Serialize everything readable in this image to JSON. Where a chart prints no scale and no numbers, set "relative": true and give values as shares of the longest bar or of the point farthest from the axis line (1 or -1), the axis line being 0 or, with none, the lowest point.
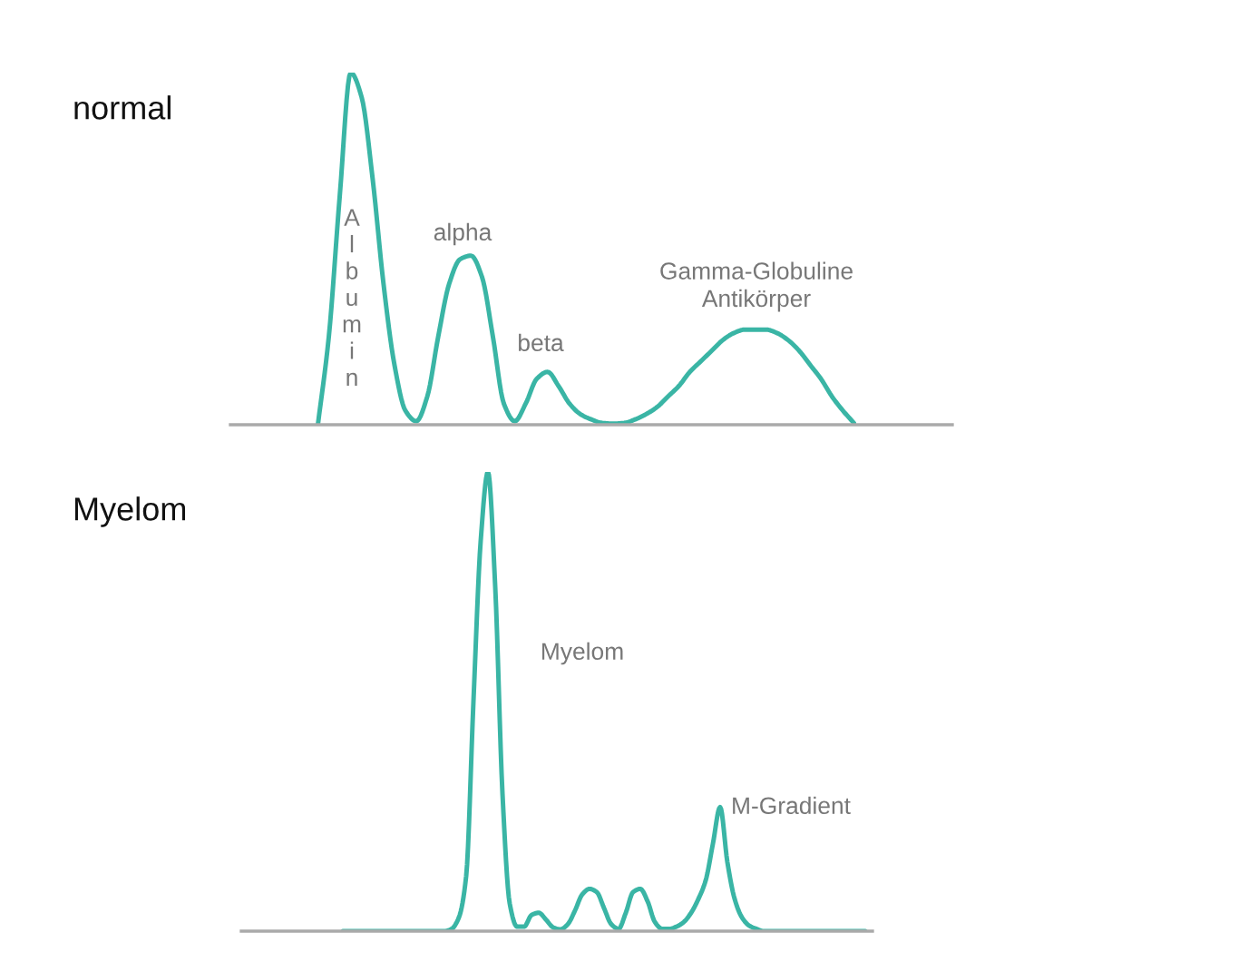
{
  "chart_data": [
    {
      "type": "line",
      "title": "normal",
      "relative": true,
      "categories": [
        null,
        null,
        null,
        null,
        null,
        null,
        null,
        null,
        null,
        null,
        null,
        null,
        null,
        null,
        null,
        null,
        null,
        null,
        null,
        null,
        null,
        null,
        null,
        null,
        null,
        null,
        null,
        null,
        null,
        null,
        null,
        null,
        null,
        null,
        null,
        null,
        null,
        null,
        null,
        null,
        null,
        null,
        null,
        null,
        null,
        null,
        null,
        null,
        null,
        null,
        null,
        null,
        null,
        null,
        null,
        null,
        null,
        null,
        null,
        null,
        null,
        null,
        null,
        null,
        null,
        null,
        null
      ],
      "series": [
        {
          "color": "#3ab5a5",
          "values": [
            null,
            null,
            null,
            null,
            null,
            null,
            null,
            null,
            0,
            0.25,
            0.65,
            1,
            0.93,
            0.7,
            0.4,
            0.17,
            0.04,
            0.01,
            0.08,
            0.25,
            0.4,
            0.47,
            0.48,
            0.42,
            0.25,
            0.06,
            0.01,
            0.06,
            0.13,
            0.15,
            0.11,
            0.06,
            0.03,
            0.015,
            0.005,
            0.003,
            0.005,
            0.015,
            0.03,
            0.05,
            0.08,
            0.11,
            0.15,
            0.18,
            0.21,
            0.24,
            0.26,
            0.27,
            0.27,
            0.27,
            0.26,
            0.24,
            0.21,
            0.17,
            0.13,
            0.08,
            0.04,
            0.005,
            null,
            null,
            null,
            null,
            null,
            null,
            null,
            null,
            null
          ]
        }
      ],
      "annotations": [
        "Albumin",
        "alpha",
        "beta",
        "Gamma-Globuline\nAntikörper"
      ]
    },
    {
      "type": "line",
      "title": "Myelom",
      "relative": true,
      "categories": [
        null,
        null,
        null,
        null,
        null,
        null,
        null,
        null,
        null,
        null,
        null,
        null,
        null,
        null,
        null,
        null,
        null,
        null,
        null,
        null,
        null,
        null,
        null,
        null,
        null,
        null,
        null,
        null,
        null,
        null,
        null,
        null,
        null,
        null,
        null,
        null,
        null,
        null,
        null,
        null,
        null,
        null,
        null,
        null,
        null,
        null,
        null,
        null,
        null,
        null,
        null,
        null,
        null,
        null,
        null,
        null,
        null,
        null,
        null,
        null,
        null,
        null,
        null,
        null,
        null,
        null,
        null,
        null,
        null,
        null,
        null,
        null,
        null,
        null,
        null,
        null,
        null,
        null,
        null,
        null,
        null,
        null,
        null,
        null,
        null,
        null,
        null,
        null
      ],
      "series": [
        {
          "color": "#3ab5a5",
          "values": [
            null,
            null,
            null,
            null,
            null,
            null,
            null,
            null,
            null,
            null,
            null,
            null,
            null,
            null,
            0,
            0,
            0,
            0,
            0,
            0,
            0,
            0,
            0,
            0,
            0,
            0,
            0,
            0,
            0,
            0.005,
            0.03,
            0.12,
            0.5,
            0.85,
            1,
            0.75,
            0.3,
            0.06,
            0.01,
            0.01,
            0.035,
            0.04,
            0.025,
            0.008,
            0.004,
            0.015,
            0.045,
            0.08,
            0.092,
            0.085,
            0.05,
            0.015,
            0.005,
            0.04,
            0.085,
            0.092,
            0.065,
            0.02,
            0.005,
            0.005,
            0.01,
            0.02,
            0.04,
            0.07,
            0.11,
            0.19,
            0.27,
            0.15,
            0.07,
            0.03,
            0.012,
            0.005,
            0,
            0,
            0,
            0,
            0,
            0,
            0,
            0,
            0,
            0,
            0,
            0,
            0,
            0,
            0,
            null
          ]
        }
      ],
      "annotations": [
        "Myelom",
        "M-Gradient"
      ]
    }
  ]
}
